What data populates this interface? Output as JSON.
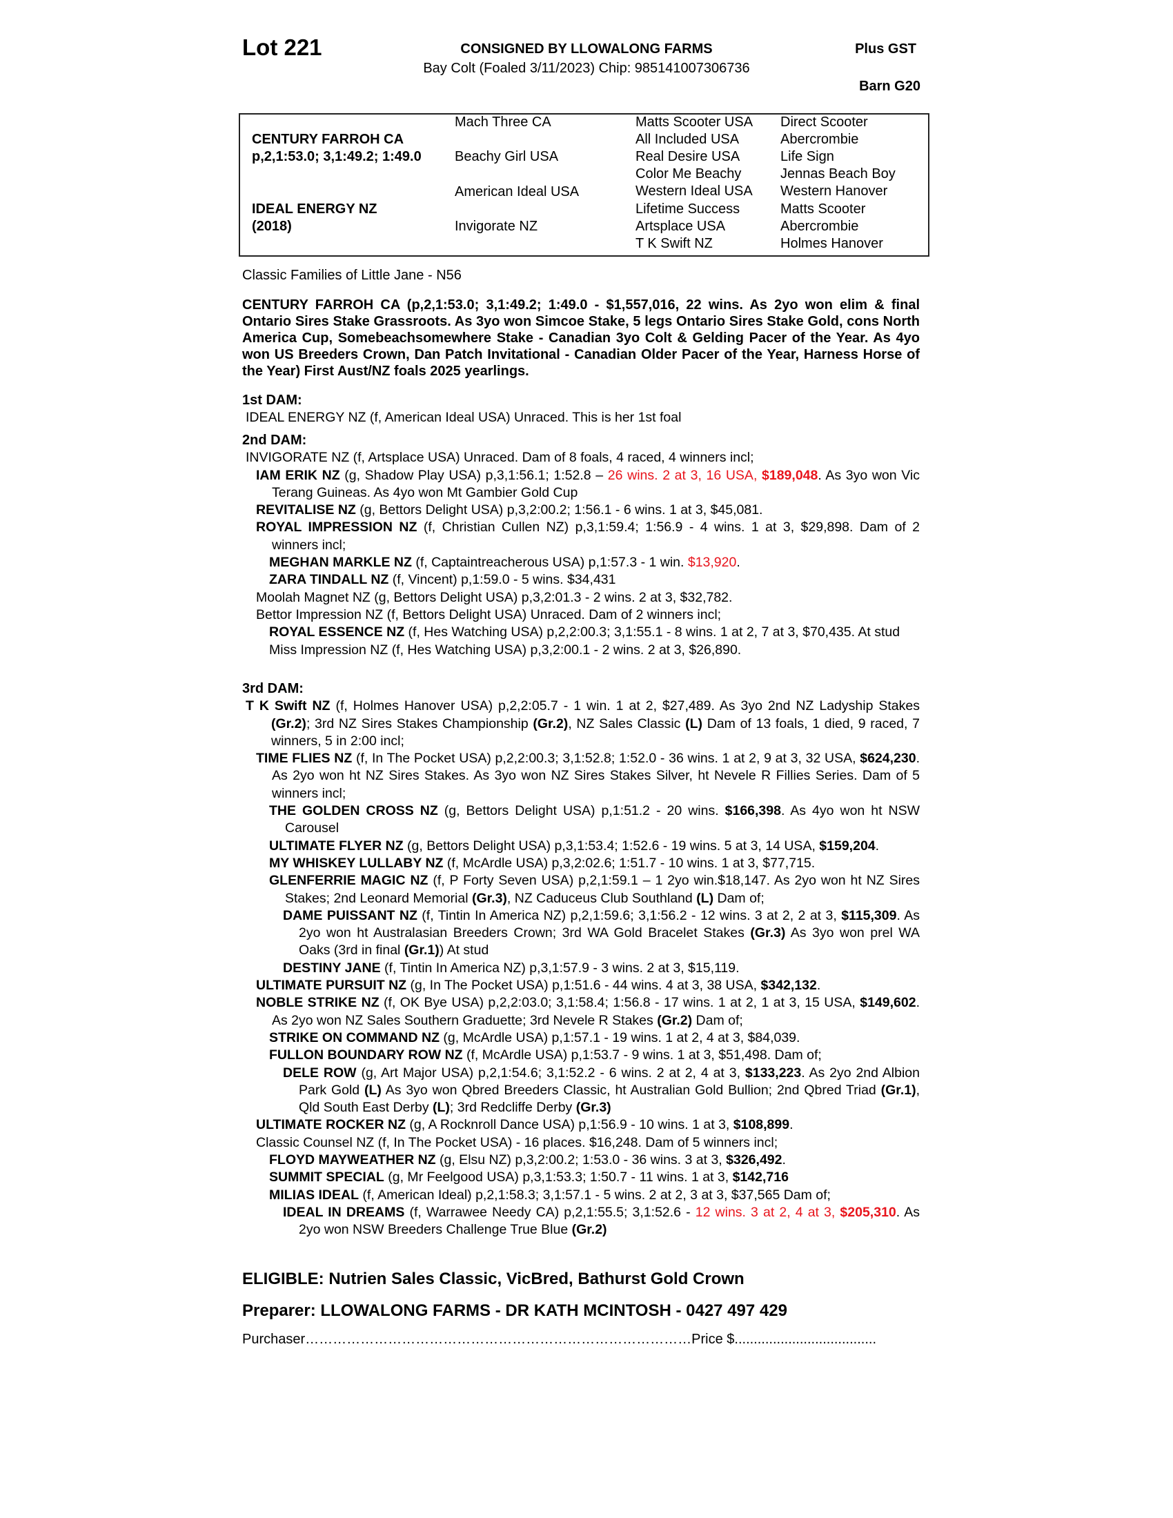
{
  "header": {
    "lot": "Lot 221",
    "consigned": "CONSIGNED BY LLOWALONG FARMS",
    "description": "Bay Colt (Foaled 3/11/2023) Chip: 985141007306736",
    "gst": "Plus GST",
    "barn": "Barn G20"
  },
  "pedigree": {
    "sire": "CENTURY FARROH CA",
    "sire_record": "p,2,1:53.0; 3,1:49.2; 1:49.0",
    "dam": "IDEAL ENERGY NZ",
    "dam_year": "(2018)",
    "gen2": [
      "Mach Three CA",
      "Beachy Girl USA",
      "American Ideal USA",
      "Invigorate NZ"
    ],
    "gen3": [
      "Matts Scooter USA",
      "All Included USA",
      "Real Desire USA",
      "Color Me Beachy",
      "Western Ideal USA",
      "Lifetime Success",
      "Artsplace USA",
      "T K Swift NZ"
    ],
    "gen4": [
      "Direct Scooter",
      "Abercrombie",
      "Life Sign",
      "Jennas Beach Boy",
      "Western Hanover",
      "Matts Scooter",
      "Abercrombie",
      "Holmes Hanover"
    ]
  },
  "family": "Classic Families of Little Jane - N56",
  "sire_paragraph": "CENTURY FARROH CA (p,2,1:53.0; 3,1:49.2; 1:49.0 - $1,557,016, 22 wins. As 2yo won elim & final Ontario Sires Stake Grassroots. As 3yo won Simcoe Stake, 5 legs Ontario Sires Stake Gold, cons North America Cup, Somebeachsomewhere Stake - Canadian 3yo Colt & Gelding Pacer of the Year. As 4yo won US Breeders Crown, Dan Patch Invitational - Canadian Older Pacer of the Year, Harness Horse of the Year) First Aust/NZ foals 2025 yearlings.",
  "colors": {
    "highlight": "#e8141c",
    "text": "#000000"
  },
  "dams": [
    {
      "title": "1st DAM:",
      "entries": [
        {
          "lvl": 0,
          "segs": [
            {
              "t": "IDEAL ENERGY NZ (f, American Ideal USA) Unraced. This is her 1st foal"
            }
          ]
        }
      ]
    },
    {
      "title": "2nd DAM:",
      "entries": [
        {
          "lvl": 0,
          "segs": [
            {
              "t": "INVIGORATE NZ (f, Artsplace USA) Unraced. Dam of 8 foals, 4 raced, 4 winners incl;"
            }
          ]
        },
        {
          "lvl": 1,
          "segs": [
            {
              "t": "IAM ERIK NZ",
              "s": "b"
            },
            {
              "t": " (g, Shadow Play USA) p,3,1:56.1; 1:52.8 – "
            },
            {
              "t": "26 wins. 2 at 3, 16 USA, ",
              "s": "r"
            },
            {
              "t": "$189,048",
              "s": "rb"
            },
            {
              "t": ". As 3yo won Vic Terang Guineas. As 4yo won Mt Gambier Gold Cup"
            }
          ]
        },
        {
          "lvl": 1,
          "segs": [
            {
              "t": "REVITALISE NZ",
              "s": "b"
            },
            {
              "t": " (g, Bettors Delight USA) p,3,2:00.2; 1:56.1 - 6 wins. 1 at 3, $45,081."
            }
          ]
        },
        {
          "lvl": 1,
          "segs": [
            {
              "t": "ROYAL IMPRESSION NZ",
              "s": "b"
            },
            {
              "t": " (f, Christian Cullen NZ) p,3,1:59.4; 1:56.9 - 4 wins. 1 at 3, $29,898. Dam of 2 winners incl;"
            }
          ]
        },
        {
          "lvl": 2,
          "segs": [
            {
              "t": "MEGHAN MARKLE NZ",
              "s": "b"
            },
            {
              "t": " (f, Captaintreacherous USA) p,1:57.3 - 1 win. "
            },
            {
              "t": "$13,920",
              "s": "r"
            },
            {
              "t": "."
            }
          ]
        },
        {
          "lvl": 2,
          "segs": [
            {
              "t": "ZARA TINDALL NZ",
              "s": "b"
            },
            {
              "t": " (f, Vincent) p,1:59.0 - 5 wins. $34,431"
            }
          ]
        },
        {
          "lvl": 1,
          "segs": [
            {
              "t": "Moolah Magnet NZ (g, Bettors Delight USA) p,3,2:01.3 - 2 wins. 2 at 3, $32,782."
            }
          ]
        },
        {
          "lvl": 1,
          "segs": [
            {
              "t": "Bettor Impression NZ (f, Bettors Delight USA) Unraced. Dam of 2 winners incl;"
            }
          ]
        },
        {
          "lvl": 2,
          "segs": [
            {
              "t": "ROYAL ESSENCE NZ",
              "s": "b"
            },
            {
              "t": " (f, Hes Watching USA) p,2,2:00.3; 3,1:55.1 - 8 wins. 1 at 2, 7 at 3, $70,435. At stud"
            }
          ]
        },
        {
          "lvl": 2,
          "segs": [
            {
              "t": "Miss Impression NZ (f, Hes Watching USA) p,3,2:00.1 - 2 wins. 2 at 3, $26,890."
            }
          ]
        }
      ]
    },
    {
      "title": "3rd DAM:",
      "entries": [
        {
          "lvl": 0,
          "segs": [
            {
              "t": "T K Swift NZ",
              "s": "b"
            },
            {
              "t": " (f, Holmes Hanover USA) p,2,2:05.7 - 1 win. 1 at 2, $27,489. As 3yo 2nd NZ Ladyship Stakes "
            },
            {
              "t": "(Gr.2)",
              "s": "b"
            },
            {
              "t": "; 3rd NZ Sires Stakes Championship "
            },
            {
              "t": "(Gr.2)",
              "s": "b"
            },
            {
              "t": ", NZ Sales Classic "
            },
            {
              "t": "(L)",
              "s": "b"
            },
            {
              "t": " Dam of 13 foals, 1 died, 9 raced, 7 winners, 5 in 2:00 incl;"
            }
          ]
        },
        {
          "lvl": 1,
          "segs": [
            {
              "t": "TIME FLIES NZ",
              "s": "b"
            },
            {
              "t": " (f, In The Pocket USA) p,2,2:00.3; 3,1:52.8; 1:52.0 - 36 wins. 1 at 2, 9 at 3, 32 USA, "
            },
            {
              "t": "$624,230",
              "s": "b"
            },
            {
              "t": ". As 2yo won ht NZ Sires Stakes. As 3yo won NZ Sires Stakes Silver, ht Nevele R Fillies Series. Dam of 5 winners incl;"
            }
          ]
        },
        {
          "lvl": 2,
          "segs": [
            {
              "t": "THE GOLDEN CROSS NZ",
              "s": "b"
            },
            {
              "t": " (g, Bettors Delight USA) p,1:51.2 - 20 wins. "
            },
            {
              "t": "$166,398",
              "s": "b"
            },
            {
              "t": ". As 4yo won ht NSW Carousel"
            }
          ]
        },
        {
          "lvl": 2,
          "segs": [
            {
              "t": "ULTIMATE FLYER NZ",
              "s": "b"
            },
            {
              "t": " (g, Bettors Delight USA) p,3,1:53.4; 1:52.6 - 19 wins. 5 at 3, 14 USA, "
            },
            {
              "t": "$159,204",
              "s": "b"
            },
            {
              "t": "."
            }
          ]
        },
        {
          "lvl": 2,
          "segs": [
            {
              "t": "MY WHISKEY LULLABY NZ",
              "s": "b"
            },
            {
              "t": " (f, McArdle USA) p,3,2:02.6; 1:51.7 - 10 wins. 1 at 3, $77,715."
            }
          ]
        },
        {
          "lvl": 2,
          "segs": [
            {
              "t": "GLENFERRIE MAGIC NZ",
              "s": "b"
            },
            {
              "t": " (f, P Forty Seven USA) p,2,1:59.1 – 1 2yo win.$18,147. As 2yo won ht NZ Sires Stakes; 2nd Leonard Memorial "
            },
            {
              "t": "(Gr.3)",
              "s": "b"
            },
            {
              "t": ", NZ Caduceus Club Southland "
            },
            {
              "t": "(L)",
              "s": "b"
            },
            {
              "t": " Dam of;"
            }
          ]
        },
        {
          "lvl": 3,
          "segs": [
            {
              "t": "DAME PUISSANT NZ",
              "s": "b"
            },
            {
              "t": " (f, Tintin In America NZ) p,2,1:59.6; 3,1:56.2 - 12 wins. 3 at 2, 2 at 3, "
            },
            {
              "t": "$115,309",
              "s": "b"
            },
            {
              "t": ". As 2yo won ht Australasian Breeders Crown; 3rd WA Gold Bracelet Stakes "
            },
            {
              "t": "(Gr.3)",
              "s": "b"
            },
            {
              "t": " As 3yo won prel WA Oaks (3rd in final "
            },
            {
              "t": "(Gr.1)",
              "s": "b"
            },
            {
              "t": ") At stud"
            }
          ]
        },
        {
          "lvl": 3,
          "segs": [
            {
              "t": "DESTINY JANE",
              "s": "b"
            },
            {
              "t": " (f, Tintin In America NZ) p,3,1:57.9 - 3 wins. 2 at 3, $15,119."
            }
          ]
        },
        {
          "lvl": 1,
          "segs": [
            {
              "t": "ULTIMATE PURSUIT NZ",
              "s": "b"
            },
            {
              "t": " (g, In The Pocket USA) p,1:51.6 - 44 wins. 4 at 3, 38 USA, "
            },
            {
              "t": "$342,132",
              "s": "b"
            },
            {
              "t": "."
            }
          ]
        },
        {
          "lvl": 1,
          "segs": [
            {
              "t": "NOBLE STRIKE NZ",
              "s": "b"
            },
            {
              "t": " (f, OK Bye USA) p,2,2:03.0; 3,1:58.4; 1:56.8 - 17 wins. 1 at 2, 1 at 3, 15 USA, "
            },
            {
              "t": "$149,602",
              "s": "b"
            },
            {
              "t": ". As 2yo won NZ Sales Southern Graduette; 3rd Nevele R Stakes "
            },
            {
              "t": "(Gr.2)",
              "s": "b"
            },
            {
              "t": " Dam of;"
            }
          ]
        },
        {
          "lvl": 2,
          "segs": [
            {
              "t": "STRIKE ON COMMAND NZ",
              "s": "b"
            },
            {
              "t": " (g, McArdle USA) p,1:57.1 - 19 wins. 1 at 2, 4 at 3, $84,039."
            }
          ]
        },
        {
          "lvl": 2,
          "segs": [
            {
              "t": "FULLON BOUNDARY ROW NZ",
              "s": "b"
            },
            {
              "t": " (f, McArdle USA) p,1:53.7 - 9 wins. 1 at 3, $51,498. Dam of;"
            }
          ]
        },
        {
          "lvl": 3,
          "segs": [
            {
              "t": "DELE ROW",
              "s": "b"
            },
            {
              "t": " (g, Art Major USA) p,2,1:54.6; 3,1:52.2 - 6 wins. 2 at 2, 4 at 3, "
            },
            {
              "t": "$133,223",
              "s": "b"
            },
            {
              "t": ". As 2yo 2nd Albion Park Gold "
            },
            {
              "t": "(L)",
              "s": "b"
            },
            {
              "t": " As 3yo won Qbred Breeders Classic, ht Australian Gold Bullion; 2nd Qbred Triad "
            },
            {
              "t": "(Gr.1)",
              "s": "b"
            },
            {
              "t": ", Qld South East Derby "
            },
            {
              "t": "(L)",
              "s": "b"
            },
            {
              "t": "; 3rd Redcliffe Derby "
            },
            {
              "t": "(Gr.3)",
              "s": "b"
            }
          ]
        },
        {
          "lvl": 1,
          "segs": [
            {
              "t": "ULTIMATE ROCKER NZ",
              "s": "b"
            },
            {
              "t": " (g, A Rocknroll Dance USA) p,1:56.9 - 10 wins. 1 at 3, "
            },
            {
              "t": "$108,899",
              "s": "b"
            },
            {
              "t": "."
            }
          ]
        },
        {
          "lvl": 1,
          "segs": [
            {
              "t": "Classic Counsel NZ (f, In The Pocket USA) - 16 places. $16,248. Dam of 5 winners incl;"
            }
          ]
        },
        {
          "lvl": 2,
          "segs": [
            {
              "t": "FLOYD MAYWEATHER NZ",
              "s": "b"
            },
            {
              "t": " (g, Elsu NZ) p,3,2:00.2; 1:53.0 - 36 wins. 3 at 3, "
            },
            {
              "t": "$326,492",
              "s": "b"
            },
            {
              "t": "."
            }
          ]
        },
        {
          "lvl": 2,
          "segs": [
            {
              "t": "SUMMIT SPECIAL",
              "s": "b"
            },
            {
              "t": " (g, Mr Feelgood USA) p,3,1:53.3; 1:50.7 - 11 wins. 1 at 3, "
            },
            {
              "t": "$142,716",
              "s": "b"
            }
          ]
        },
        {
          "lvl": 2,
          "segs": [
            {
              "t": "MILIAS IDEAL",
              "s": "b"
            },
            {
              "t": " (f, American Ideal) p,2,1:58.3; 3,1:57.1 - 5 wins. 2 at 2, 3 at 3, $37,565 Dam of;"
            }
          ]
        },
        {
          "lvl": 3,
          "segs": [
            {
              "t": "IDEAL IN DREAMS",
              "s": "b"
            },
            {
              "t": " (f, Warrawee Needy CA) p,2,1:55.5; 3,1:52.6 - "
            },
            {
              "t": "12 wins. 3 at 2, 4 at 3, ",
              "s": "r"
            },
            {
              "t": "$205,310",
              "s": "rb"
            },
            {
              "t": ". As 2yo won NSW Breeders Challenge True Blue "
            },
            {
              "t": "(Gr.2)",
              "s": "b"
            }
          ]
        }
      ]
    }
  ],
  "footer": {
    "eligible": "ELIGIBLE: Nutrien Sales Classic, VicBred, Bathurst Gold Crown",
    "preparer": "Preparer: LLOWALONG FARMS - DR KATH MCINTOSH - 0427 497 429",
    "purchaser": "Purchaser…………………………………………………………………………Price $....................................."
  }
}
